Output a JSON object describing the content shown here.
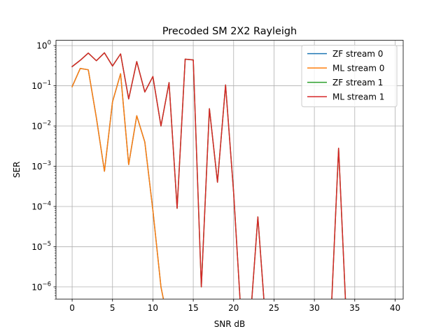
{
  "chart_data": {
    "type": "line",
    "title": "Precoded SM 2X2 Rayleigh",
    "xlabel": "SNR dB",
    "ylabel": "SER",
    "xlim": [
      -2,
      41
    ],
    "ylim": [
      5e-07,
      1.35
    ],
    "yscale": "log",
    "grid": true,
    "legend_position": "top-right",
    "xticks": [
      0,
      5,
      10,
      15,
      20,
      25,
      30,
      35,
      40
    ],
    "xtick_labels": [
      "0",
      "5",
      "10",
      "15",
      "20",
      "25",
      "30",
      "35",
      "40"
    ],
    "yticks": [
      1e-06,
      1e-05,
      0.0001,
      0.001,
      0.01,
      0.1,
      1
    ],
    "ytick_labels": [
      {
        "base": "10",
        "exp": "−6"
      },
      {
        "base": "10",
        "exp": "−5"
      },
      {
        "base": "10",
        "exp": "−4"
      },
      {
        "base": "10",
        "exp": "−3"
      },
      {
        "base": "10",
        "exp": "−2"
      },
      {
        "base": "10",
        "exp": "−1"
      },
      {
        "base": "10",
        "exp": "0"
      }
    ],
    "series": [
      {
        "name": "ZF stream 0",
        "color": "#1f77b4",
        "x": [
          0,
          1,
          2,
          3,
          4,
          5,
          6,
          7,
          8,
          9,
          10,
          11,
          12
        ],
        "y": [
          0.095,
          0.27,
          0.25,
          0.016,
          0.00075,
          0.04,
          0.2,
          0.0011,
          0.018,
          0.004,
          8e-05,
          1e-06,
          0
        ]
      },
      {
        "name": "ML stream 0",
        "color": "#ff7f0e",
        "x": [
          0,
          1,
          2,
          3,
          4,
          5,
          6,
          7,
          8,
          9,
          10,
          11,
          12
        ],
        "y": [
          0.095,
          0.27,
          0.25,
          0.016,
          0.00075,
          0.04,
          0.2,
          0.0011,
          0.018,
          0.004,
          8e-05,
          1e-06,
          0
        ]
      },
      {
        "name": "ZF stream 1",
        "color": "#2ca02c",
        "x": [
          0,
          1,
          2,
          3,
          4,
          5,
          6,
          7,
          8,
          9,
          10,
          11,
          12,
          13,
          14,
          15,
          16,
          17,
          18,
          19,
          20,
          21,
          22,
          23,
          24,
          32,
          33,
          34
        ],
        "y": [
          0.3,
          0.43,
          0.65,
          0.42,
          0.66,
          0.31,
          0.62,
          0.047,
          0.4,
          0.07,
          0.17,
          0.01,
          0.12,
          9e-05,
          0.46,
          0.44,
          1e-06,
          0.027,
          0.0004,
          0.105,
          0.00022,
          0,
          0,
          5.5e-05,
          0,
          0,
          0.0028,
          0
        ]
      },
      {
        "name": "ML stream 1",
        "color": "#d62728",
        "x": [
          0,
          1,
          2,
          3,
          4,
          5,
          6,
          7,
          8,
          9,
          10,
          11,
          12,
          13,
          14,
          15,
          16,
          17,
          18,
          19,
          20,
          21,
          22,
          23,
          24,
          32,
          33,
          34
        ],
        "y": [
          0.3,
          0.43,
          0.65,
          0.42,
          0.66,
          0.31,
          0.62,
          0.047,
          0.4,
          0.07,
          0.17,
          0.01,
          0.12,
          9e-05,
          0.46,
          0.44,
          1e-06,
          0.027,
          0.0004,
          0.105,
          0.00022,
          0,
          0,
          5.5e-05,
          0,
          0,
          0.0028,
          0
        ]
      }
    ]
  }
}
